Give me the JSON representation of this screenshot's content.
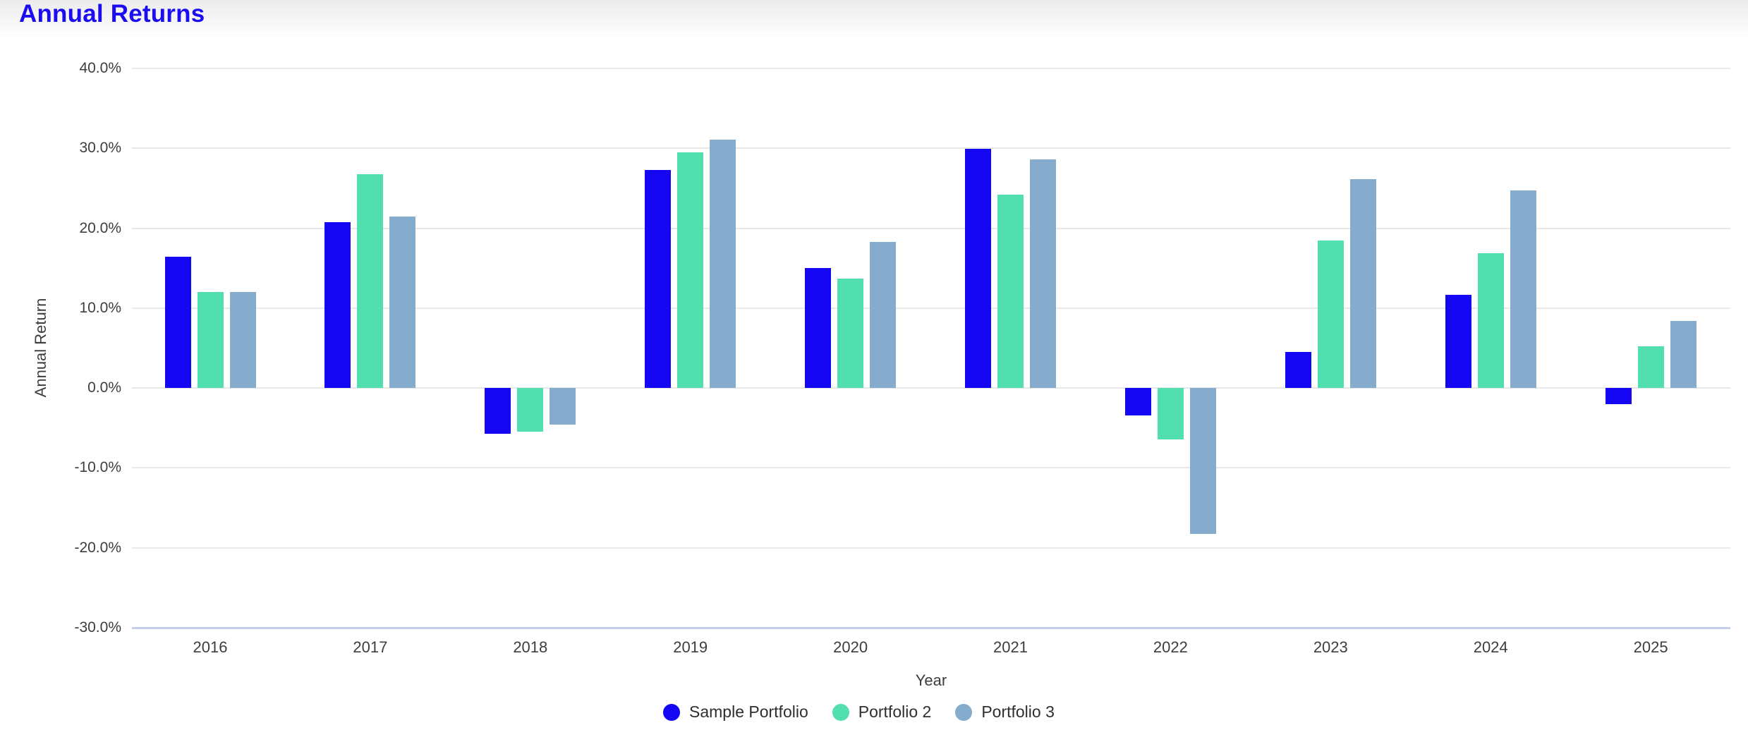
{
  "page": {
    "title": "Annual Returns",
    "colors": {
      "title": "#1b0cf2",
      "gridline": "#e8e8e8",
      "baseline": "#c5d1e9",
      "tick_text": "#3d3d3d"
    }
  },
  "chart_data": {
    "type": "bar",
    "title": "Annual Returns",
    "xlabel": "Year",
    "ylabel": "Annual Return",
    "categories": [
      "2016",
      "2017",
      "2018",
      "2019",
      "2020",
      "2021",
      "2022",
      "2023",
      "2024",
      "2025"
    ],
    "series": [
      {
        "name": "Sample Portfolio",
        "color": "#1506f4",
        "values": [
          16.4,
          20.8,
          -5.7,
          27.3,
          15.0,
          29.9,
          -3.4,
          4.5,
          11.7,
          -2.0
        ]
      },
      {
        "name": "Portfolio 2",
        "color": "#52dfaf",
        "values": [
          12.0,
          26.8,
          -5.5,
          29.5,
          13.7,
          24.2,
          -6.4,
          18.5,
          16.9,
          5.2
        ]
      },
      {
        "name": "Portfolio 3",
        "color": "#85abcd",
        "values": [
          12.0,
          21.5,
          -4.6,
          31.1,
          18.3,
          28.6,
          -18.3,
          26.1,
          24.7,
          8.4
        ]
      }
    ],
    "ylim": [
      -30,
      40
    ],
    "y_ticks": [
      {
        "value": 40,
        "label": "40.0%"
      },
      {
        "value": 30,
        "label": "30.0%"
      },
      {
        "value": 20,
        "label": "20.0%"
      },
      {
        "value": 10,
        "label": "10.0%"
      },
      {
        "value": 0,
        "label": "0.0%"
      },
      {
        "value": -10,
        "label": "-10.0%"
      },
      {
        "value": -20,
        "label": "-20.0%"
      },
      {
        "value": -30,
        "label": "-30.0%"
      }
    ],
    "grid": true,
    "legend_position": "bottom"
  }
}
